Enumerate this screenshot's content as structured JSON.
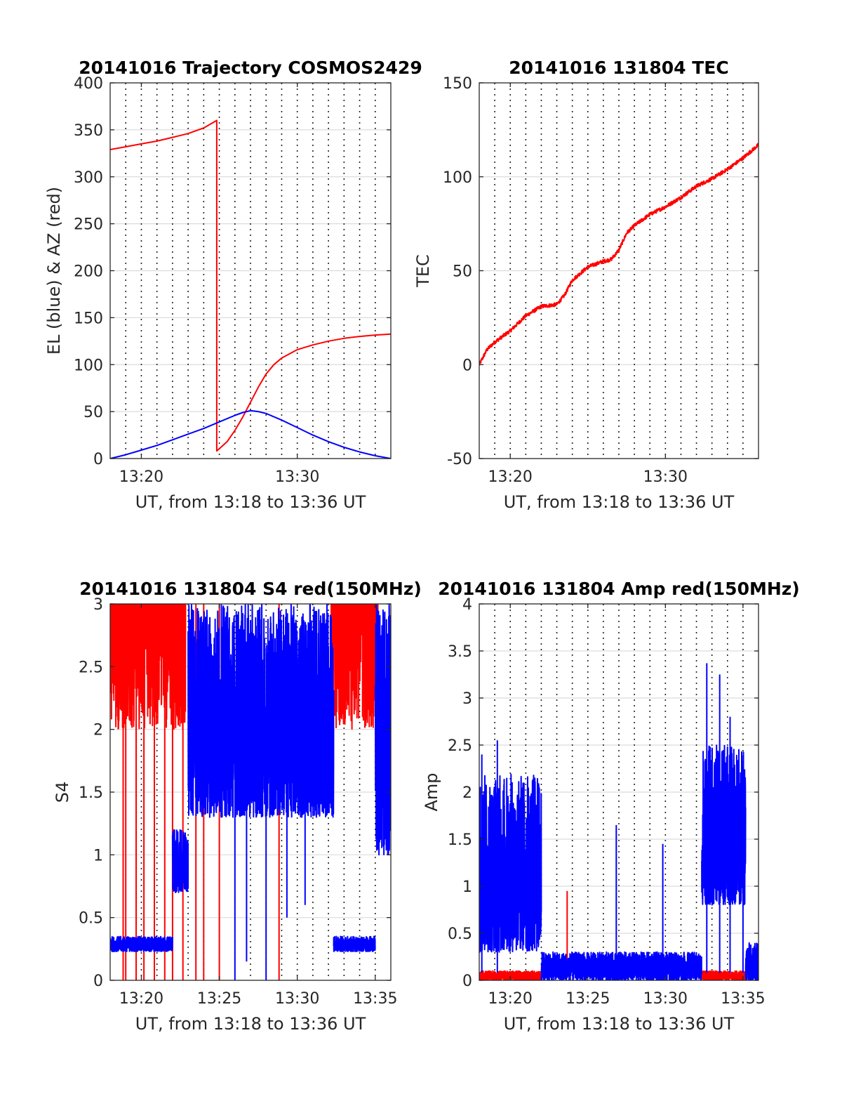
{
  "colors": {
    "red": "#ff0000",
    "blue": "#0000ff",
    "axis": "#262626",
    "grid": "#dcdcdc",
    "background": "#ffffff"
  },
  "chart_data": [
    {
      "id": "traj",
      "type": "line",
      "title": "20141016 Trajectory COSMOS2429",
      "xlabel": "UT, from 13:18 to 13:36 UT",
      "ylabel": "EL (blue) & AZ (red)",
      "xlim": [
        "13:18",
        "13:36"
      ],
      "ylim": [
        0,
        400
      ],
      "yticks": [
        0,
        50,
        100,
        150,
        200,
        250,
        300,
        350,
        400
      ],
      "ytick_labels": [
        "0",
        "50",
        "100",
        "150",
        "200",
        "250",
        "300",
        "350",
        "400"
      ],
      "xticks": [
        "13:20",
        "13:30"
      ],
      "minor_dotted_grid_minutes": 1,
      "series": [
        {
          "color": "red",
          "points": [
            [
              "13:18:00",
              329
            ],
            [
              "13:19:00",
              332
            ],
            [
              "13:20:00",
              335
            ],
            [
              "13:21:00",
              338
            ],
            [
              "13:22:00",
              342
            ],
            [
              "13:23:00",
              346
            ],
            [
              "13:24:00",
              352
            ],
            [
              "13:24:50",
              360
            ],
            [
              "13:24:50",
              8
            ],
            [
              "13:25:30",
              18
            ],
            [
              "13:26:00",
              30
            ],
            [
              "13:26:30",
              44
            ],
            [
              "13:27:00",
              60
            ],
            [
              "13:27:30",
              76
            ],
            [
              "13:28:00",
              90
            ],
            [
              "13:28:30",
              100
            ],
            [
              "13:29:00",
              107
            ],
            [
              "13:30:00",
              116
            ],
            [
              "13:31:00",
              121
            ],
            [
              "13:32:00",
              125
            ],
            [
              "13:33:00",
              128
            ],
            [
              "13:34:00",
              130
            ],
            [
              "13:35:00",
              131.5
            ],
            [
              "13:36:00",
              132.5
            ]
          ]
        },
        {
          "color": "blue",
          "points": [
            [
              "13:18:00",
              0
            ],
            [
              "13:19:00",
              4
            ],
            [
              "13:20:00",
              9
            ],
            [
              "13:21:00",
              14
            ],
            [
              "13:22:00",
              20
            ],
            [
              "13:23:00",
              26
            ],
            [
              "13:24:00",
              32
            ],
            [
              "13:25:00",
              39
            ],
            [
              "13:26:00",
              46
            ],
            [
              "13:26:30",
              49
            ],
            [
              "13:27:00",
              51
            ],
            [
              "13:27:30",
              50
            ],
            [
              "13:28:00",
              48
            ],
            [
              "13:29:00",
              41
            ],
            [
              "13:30:00",
              33
            ],
            [
              "13:31:00",
              25
            ],
            [
              "13:32:00",
              18
            ],
            [
              "13:33:00",
              12
            ],
            [
              "13:34:00",
              7
            ],
            [
              "13:35:00",
              3
            ],
            [
              "13:36:00",
              0
            ]
          ]
        }
      ]
    },
    {
      "id": "tec",
      "type": "line",
      "title": "20141016 131804 TEC",
      "xlabel": "UT, from 13:18 to 13:36 UT",
      "ylabel": "TEC",
      "xlim": [
        "13:18",
        "13:36"
      ],
      "ylim": [
        -50,
        150
      ],
      "yticks": [
        -50,
        0,
        50,
        100,
        150
      ],
      "ytick_labels": [
        "-50",
        "0",
        "50",
        "100",
        "150"
      ],
      "xticks": [
        "13:20",
        "13:30"
      ],
      "minor_dotted_grid_minutes": 1,
      "series": [
        {
          "color": "red",
          "noise": 1.0,
          "points": [
            [
              "13:18:00",
              0
            ],
            [
              "13:18:30",
              8
            ],
            [
              "13:19:00",
              12
            ],
            [
              "13:20:00",
              18
            ],
            [
              "13:21:00",
              26
            ],
            [
              "13:22:00",
              31
            ],
            [
              "13:23:00",
              32
            ],
            [
              "13:23:30",
              37
            ],
            [
              "13:24:00",
              45
            ],
            [
              "13:25:00",
              52
            ],
            [
              "13:26:00",
              55
            ],
            [
              "13:26:30",
              56
            ],
            [
              "13:27:00",
              61
            ],
            [
              "13:27:30",
              70
            ],
            [
              "13:28:00",
              74
            ],
            [
              "13:29:00",
              80
            ],
            [
              "13:30:00",
              84
            ],
            [
              "13:31:00",
              89
            ],
            [
              "13:32:00",
              95
            ],
            [
              "13:33:00",
              99
            ],
            [
              "13:34:00",
              104
            ],
            [
              "13:35:00",
              110
            ],
            [
              "13:36:00",
              117
            ]
          ]
        }
      ]
    },
    {
      "id": "s4",
      "type": "line",
      "title": "20141016 131804 S4 red(150MHz)",
      "xlabel": "UT, from 13:18 to 13:36 UT",
      "ylabel": "S4",
      "xlim": [
        "13:18",
        "13:36"
      ],
      "ylim": [
        0,
        3
      ],
      "yticks": [
        0,
        0.5,
        1,
        1.5,
        2,
        2.5,
        3
      ],
      "ytick_labels": [
        "0",
        "0.5",
        "1",
        "1.5",
        "2",
        "2.5",
        "3"
      ],
      "xticks": [
        "13:20",
        "13:25",
        "13:30",
        "13:35"
      ],
      "minor_dotted_grid_minutes": 1,
      "series": [
        {
          "color": "red",
          "style": "saturated-noise",
          "segments": [
            {
              "from": "13:18:00",
              "to": "13:22:50",
              "low": 2.0,
              "high": 3.0
            },
            {
              "from": "13:32:10",
              "to": "13:35:10",
              "low": 2.0,
              "high": 3.0
            }
          ],
          "drops_to_zero": [
            "13:18:50",
            "13:19:00",
            "13:19:40",
            "13:20:10",
            "13:20:50",
            "13:21:30",
            "13:22:00",
            "13:22:40",
            "13:23:30",
            "13:24:00",
            "13:25:00",
            "13:28:50"
          ]
        },
        {
          "color": "blue",
          "style": "noisy-level",
          "segments": [
            {
              "from": "13:18:00",
              "to": "13:22:00",
              "low": 0.23,
              "high": 0.35
            },
            {
              "from": "13:22:00",
              "to": "13:23:00",
              "low": 0.7,
              "high": 1.2
            },
            {
              "from": "13:23:00",
              "to": "13:32:20",
              "low": 1.3,
              "high": 3.0
            },
            {
              "from": "13:32:20",
              "to": "13:35:00",
              "low": 0.23,
              "high": 0.35
            },
            {
              "from": "13:35:00",
              "to": "13:36:00",
              "low": 1.0,
              "high": 3.0
            }
          ],
          "dips": [
            [
              "13:26:00",
              0.0
            ],
            [
              "13:26:45",
              0.15
            ],
            [
              "13:28:00",
              0.0
            ],
            [
              "13:29:20",
              0.5
            ],
            [
              "13:30:30",
              0.6
            ]
          ]
        }
      ]
    },
    {
      "id": "amp",
      "type": "line",
      "title": "20141016 131804 Amp red(150MHz)",
      "xlabel": "UT, from 13:18 to 13:36 UT",
      "ylabel": "Amp",
      "xlim": [
        "13:18",
        "13:36"
      ],
      "ylim": [
        0,
        4
      ],
      "yticks": [
        0,
        0.5,
        1,
        1.5,
        2,
        2.5,
        3,
        3.5,
        4
      ],
      "ytick_labels": [
        "0",
        "0.5",
        "1",
        "1.5",
        "2",
        "2.5",
        "3",
        "3.5",
        "4"
      ],
      "xticks": [
        "13:20",
        "13:25",
        "13:30",
        "13:35"
      ],
      "minor_dotted_grid_minutes": 1,
      "series": [
        {
          "color": "red",
          "style": "noisy-level",
          "segments": [
            {
              "from": "13:18:00",
              "to": "13:22:00",
              "low": 0.0,
              "high": 0.1
            },
            {
              "from": "13:32:20",
              "to": "13:35:10",
              "low": 0.0,
              "high": 0.1
            }
          ],
          "spikes": [
            [
              "13:23:40",
              0.95
            ]
          ]
        },
        {
          "color": "blue",
          "style": "noisy-level",
          "segments": [
            {
              "from": "13:18:00",
              "to": "13:22:00",
              "low": 0.3,
              "high": 2.2
            },
            {
              "from": "13:22:00",
              "to": "13:32:20",
              "low": 0.0,
              "high": 0.3
            },
            {
              "from": "13:32:20",
              "to": "13:35:10",
              "low": 0.8,
              "high": 2.5
            },
            {
              "from": "13:35:10",
              "to": "13:36:00",
              "low": 0.0,
              "high": 0.4
            }
          ],
          "spikes": [
            [
              "13:18:10",
              2.4
            ],
            [
              "13:19:10",
              2.55
            ],
            [
              "13:26:50",
              1.65
            ],
            [
              "13:29:50",
              1.45
            ],
            [
              "13:32:40",
              3.37
            ],
            [
              "13:33:30",
              3.25
            ],
            [
              "13:34:10",
              2.8
            ],
            [
              "13:35:00",
              1.5
            ]
          ]
        }
      ]
    }
  ]
}
